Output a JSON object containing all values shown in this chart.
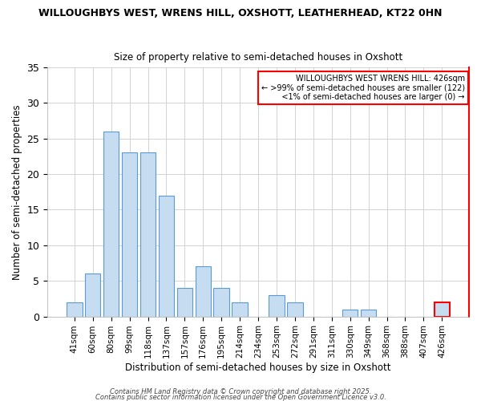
{
  "title1": "WILLOUGHBYS WEST, WRENS HILL, OXSHOTT, LEATHERHEAD, KT22 0HN",
  "title2": "Size of property relative to semi-detached houses in Oxshott",
  "xlabel": "Distribution of semi-detached houses by size in Oxshott",
  "ylabel": "Number of semi-detached properties",
  "categories": [
    "41sqm",
    "60sqm",
    "80sqm",
    "99sqm",
    "118sqm",
    "137sqm",
    "157sqm",
    "176sqm",
    "195sqm",
    "214sqm",
    "234sqm",
    "253sqm",
    "272sqm",
    "291sqm",
    "311sqm",
    "330sqm",
    "349sqm",
    "368sqm",
    "388sqm",
    "407sqm",
    "426sqm"
  ],
  "values": [
    2,
    6,
    26,
    23,
    23,
    17,
    4,
    7,
    4,
    2,
    0,
    3,
    2,
    0,
    0,
    1,
    1,
    0,
    0,
    0,
    2
  ],
  "bar_color": "#c6dcf0",
  "bar_edgecolor": "#5b9bd5",
  "highlight_index": 20,
  "highlight_edgecolor": "red",
  "ylim": [
    0,
    35
  ],
  "yticks": [
    0,
    5,
    10,
    15,
    20,
    25,
    30,
    35
  ],
  "annotation_title": "WILLOUGHBYS WEST WRENS HILL: 426sqm",
  "annotation_line2": "← >99% of semi-detached houses are smaller (122)",
  "annotation_line3": "   <1% of semi-detached houses are larger (0) →",
  "footer1": "Contains HM Land Registry data © Crown copyright and database right 2025.",
  "footer2": "Contains public sector information licensed under the Open Government Licence v3.0.",
  "bg_color": "#ffffff",
  "grid_color": "#cccccc",
  "right_spine_color": "red",
  "title1_fontsize": 9,
  "title2_fontsize": 8.5
}
